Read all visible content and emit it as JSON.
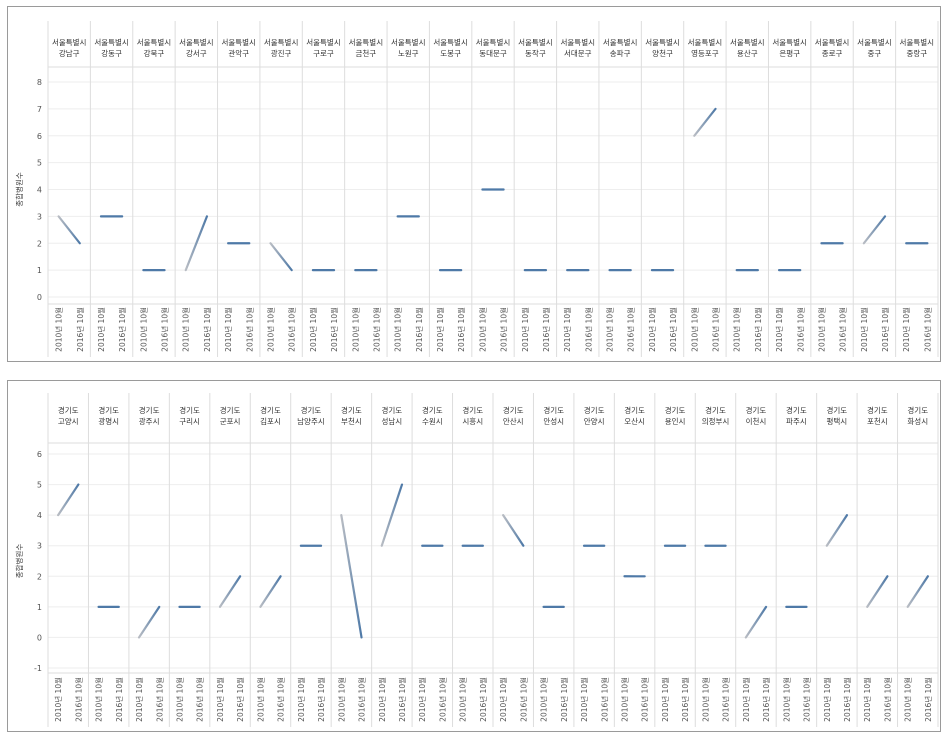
{
  "chart_data": [
    {
      "type": "line",
      "ylabel": "종합병원수",
      "ylim": [
        0,
        8
      ],
      "yticks": [
        0,
        1,
        2,
        3,
        4,
        5,
        6,
        7,
        8
      ],
      "x": [
        "2010년 10월",
        "2016년 10월"
      ],
      "grid": true,
      "panels": [
        {
          "region": "서울특별시",
          "district": "강남구",
          "values": [
            3,
            2
          ]
        },
        {
          "region": "서울특별시",
          "district": "강동구",
          "values": [
            3,
            3
          ]
        },
        {
          "region": "서울특별시",
          "district": "강북구",
          "values": [
            1,
            1
          ]
        },
        {
          "region": "서울특별시",
          "district": "강서구",
          "values": [
            1,
            3
          ]
        },
        {
          "region": "서울특별시",
          "district": "관악구",
          "values": [
            2,
            2
          ]
        },
        {
          "region": "서울특별시",
          "district": "광진구",
          "values": [
            2,
            1
          ]
        },
        {
          "region": "서울특별시",
          "district": "구로구",
          "values": [
            1,
            1
          ]
        },
        {
          "region": "서울특별시",
          "district": "금천구",
          "values": [
            1,
            1
          ]
        },
        {
          "region": "서울특별시",
          "district": "노원구",
          "values": [
            3,
            3
          ]
        },
        {
          "region": "서울특별시",
          "district": "도봉구",
          "values": [
            1,
            1
          ]
        },
        {
          "region": "서울특별시",
          "district": "동대문구",
          "values": [
            4,
            4
          ]
        },
        {
          "region": "서울특별시",
          "district": "동작구",
          "values": [
            1,
            1
          ]
        },
        {
          "region": "서울특별시",
          "district": "서대문구",
          "values": [
            1,
            1
          ]
        },
        {
          "region": "서울특별시",
          "district": "송파구",
          "values": [
            1,
            1
          ]
        },
        {
          "region": "서울특별시",
          "district": "양천구",
          "values": [
            1,
            1
          ]
        },
        {
          "region": "서울특별시",
          "district": "영등포구",
          "values": [
            6,
            7
          ]
        },
        {
          "region": "서울특별시",
          "district": "용산구",
          "values": [
            1,
            1
          ]
        },
        {
          "region": "서울특별시",
          "district": "은평구",
          "values": [
            1,
            1
          ]
        },
        {
          "region": "서울특별시",
          "district": "종로구",
          "values": [
            2,
            2
          ]
        },
        {
          "region": "서울특별시",
          "district": "중구",
          "values": [
            2,
            3
          ]
        },
        {
          "region": "서울특별시",
          "district": "중랑구",
          "values": [
            2,
            2
          ]
        }
      ]
    },
    {
      "type": "line",
      "ylabel": "종합병원수",
      "ylim": [
        -1,
        6
      ],
      "yticks": [
        -1,
        0,
        1,
        2,
        3,
        4,
        5,
        6
      ],
      "x": [
        "2010년 10월",
        "2016년 10월"
      ],
      "grid": true,
      "panels": [
        {
          "region": "경기도",
          "district": "고양시",
          "values": [
            4,
            5
          ]
        },
        {
          "region": "경기도",
          "district": "광명시",
          "values": [
            1,
            1
          ]
        },
        {
          "region": "경기도",
          "district": "광주시",
          "values": [
            0,
            1
          ]
        },
        {
          "region": "경기도",
          "district": "구리시",
          "values": [
            1,
            1
          ]
        },
        {
          "region": "경기도",
          "district": "군포시",
          "values": [
            1,
            2
          ]
        },
        {
          "region": "경기도",
          "district": "김포시",
          "values": [
            1,
            2
          ]
        },
        {
          "region": "경기도",
          "district": "남양주시",
          "values": [
            3,
            3
          ]
        },
        {
          "region": "경기도",
          "district": "부천시",
          "values": [
            4,
            0
          ]
        },
        {
          "region": "경기도",
          "district": "성남시",
          "values": [
            3,
            5
          ]
        },
        {
          "region": "경기도",
          "district": "수원시",
          "values": [
            3,
            3
          ]
        },
        {
          "region": "경기도",
          "district": "시흥시",
          "values": [
            3,
            3
          ]
        },
        {
          "region": "경기도",
          "district": "안산시",
          "values": [
            4,
            3
          ]
        },
        {
          "region": "경기도",
          "district": "안성시",
          "values": [
            1,
            1
          ]
        },
        {
          "region": "경기도",
          "district": "안양시",
          "values": [
            3,
            3
          ]
        },
        {
          "region": "경기도",
          "district": "오산시",
          "values": [
            2,
            2
          ]
        },
        {
          "region": "경기도",
          "district": "용인시",
          "values": [
            3,
            3
          ]
        },
        {
          "region": "경기도",
          "district": "의정부시",
          "values": [
            3,
            3
          ]
        },
        {
          "region": "경기도",
          "district": "이천시",
          "values": [
            0,
            1
          ]
        },
        {
          "region": "경기도",
          "district": "파주시",
          "values": [
            1,
            1
          ]
        },
        {
          "region": "경기도",
          "district": "평택시",
          "values": [
            3,
            4
          ]
        },
        {
          "region": "경기도",
          "district": "포천시",
          "values": [
            1,
            2
          ]
        },
        {
          "region": "경기도",
          "district": "화성시",
          "values": [
            1,
            2
          ]
        }
      ]
    }
  ],
  "colors": {
    "line_start": "#b8bcc3",
    "line_end": "#4e79a7",
    "grid": "#eeeeee",
    "divider": "#dddddd"
  }
}
